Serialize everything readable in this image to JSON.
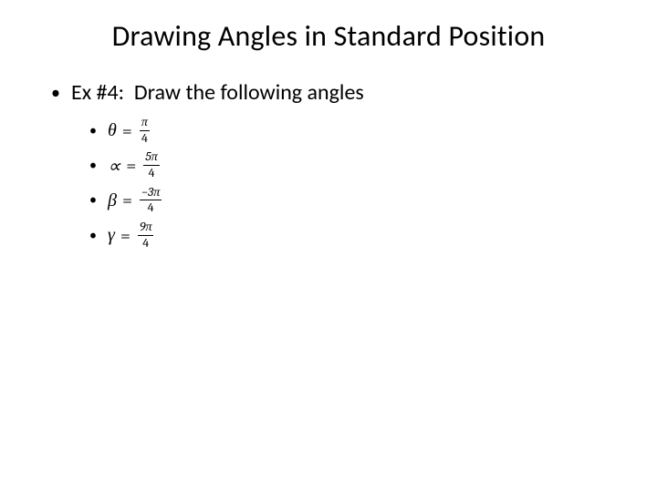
{
  "slide": {
    "title": "Drawing Angles in Standard Position",
    "title_fontsize": 32,
    "title_color": "#000000",
    "background_color": "#ffffff",
    "l1_bullet": {
      "prefix": "Ex #4:",
      "text": "Draw the following angles",
      "fontsize": 24
    },
    "angles": [
      {
        "variable": "θ",
        "numerator": "π",
        "denominator": "4"
      },
      {
        "variable": "∝",
        "numerator": "5π",
        "denominator": "4"
      },
      {
        "variable": "β",
        "numerator": "−3π",
        "denominator": "4"
      },
      {
        "variable": "γ",
        "numerator": "9π",
        "denominator": "4"
      }
    ],
    "l2_fontsize": 20,
    "frac_fontsize": 14,
    "equals": "="
  }
}
